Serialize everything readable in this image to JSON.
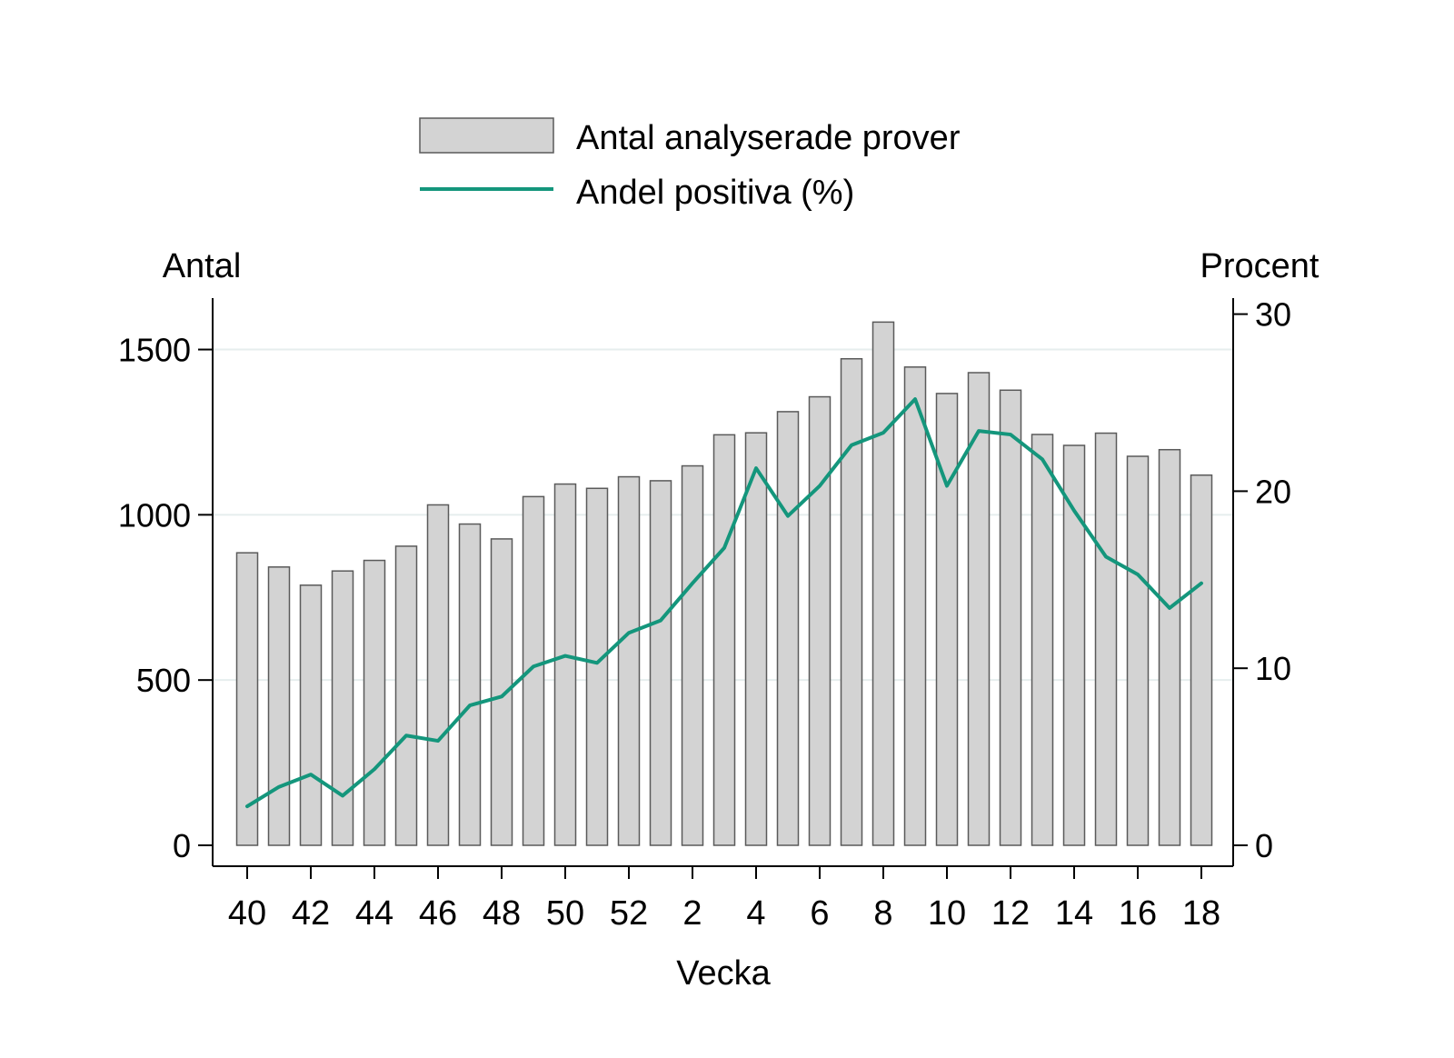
{
  "chart_data": {
    "type": "bar",
    "legend": {
      "position": "top-center",
      "bar_label": "Antal analyserade prover",
      "line_label": "Andel positiva (%)"
    },
    "xlabel": "Vecka",
    "ylabel_left": "Antal",
    "ylabel_right": "Procent",
    "ylim_left": [
      0,
      1650
    ],
    "ylim_right": [
      0,
      30.8
    ],
    "yticks_left": [
      "0",
      "500",
      "1000",
      "1500"
    ],
    "yticks_right": [
      "0",
      "10",
      "20",
      "30"
    ],
    "grid": "horizontal",
    "x_tick_labels": [
      "40",
      "42",
      "44",
      "46",
      "48",
      "50",
      "52",
      "2",
      "4",
      "6",
      "8",
      "10",
      "12",
      "14",
      "16",
      "18"
    ],
    "weeks": [
      "40",
      "41",
      "42",
      "43",
      "44",
      "45",
      "46",
      "47",
      "48",
      "49",
      "50",
      "51",
      "52",
      "1",
      "2",
      "3",
      "4",
      "5",
      "6",
      "7",
      "8",
      "9",
      "10",
      "11",
      "12",
      "13",
      "14",
      "15",
      "16",
      "17",
      "18"
    ],
    "series": [
      {
        "name": "Antal analyserade prover",
        "type": "bar",
        "axis": "left",
        "values": [
          885,
          842,
          787,
          830,
          862,
          905,
          1030,
          972,
          927,
          1055,
          1093,
          1080,
          1115,
          1103,
          1148,
          1242,
          1248,
          1312,
          1357,
          1472,
          1583,
          1447,
          1367,
          1430,
          1377,
          1243,
          1210,
          1247,
          1177,
          1197,
          1120
        ]
      },
      {
        "name": "Andel positiva (%)",
        "type": "line",
        "axis": "right",
        "values": [
          2.2,
          3.3,
          4.0,
          2.8,
          4.3,
          6.2,
          5.9,
          7.9,
          8.4,
          10.1,
          10.7,
          10.3,
          12.0,
          12.7,
          14.8,
          16.8,
          21.3,
          18.6,
          20.3,
          22.6,
          23.3,
          25.2,
          20.3,
          23.4,
          23.2,
          21.8,
          18.9,
          16.3,
          15.3,
          13.4,
          14.8
        ]
      }
    ],
    "colors": {
      "bar_fill": "#d3d3d3",
      "bar_stroke": "#5a5a5a",
      "line": "#14967c",
      "grid": "#e6eeee"
    }
  }
}
